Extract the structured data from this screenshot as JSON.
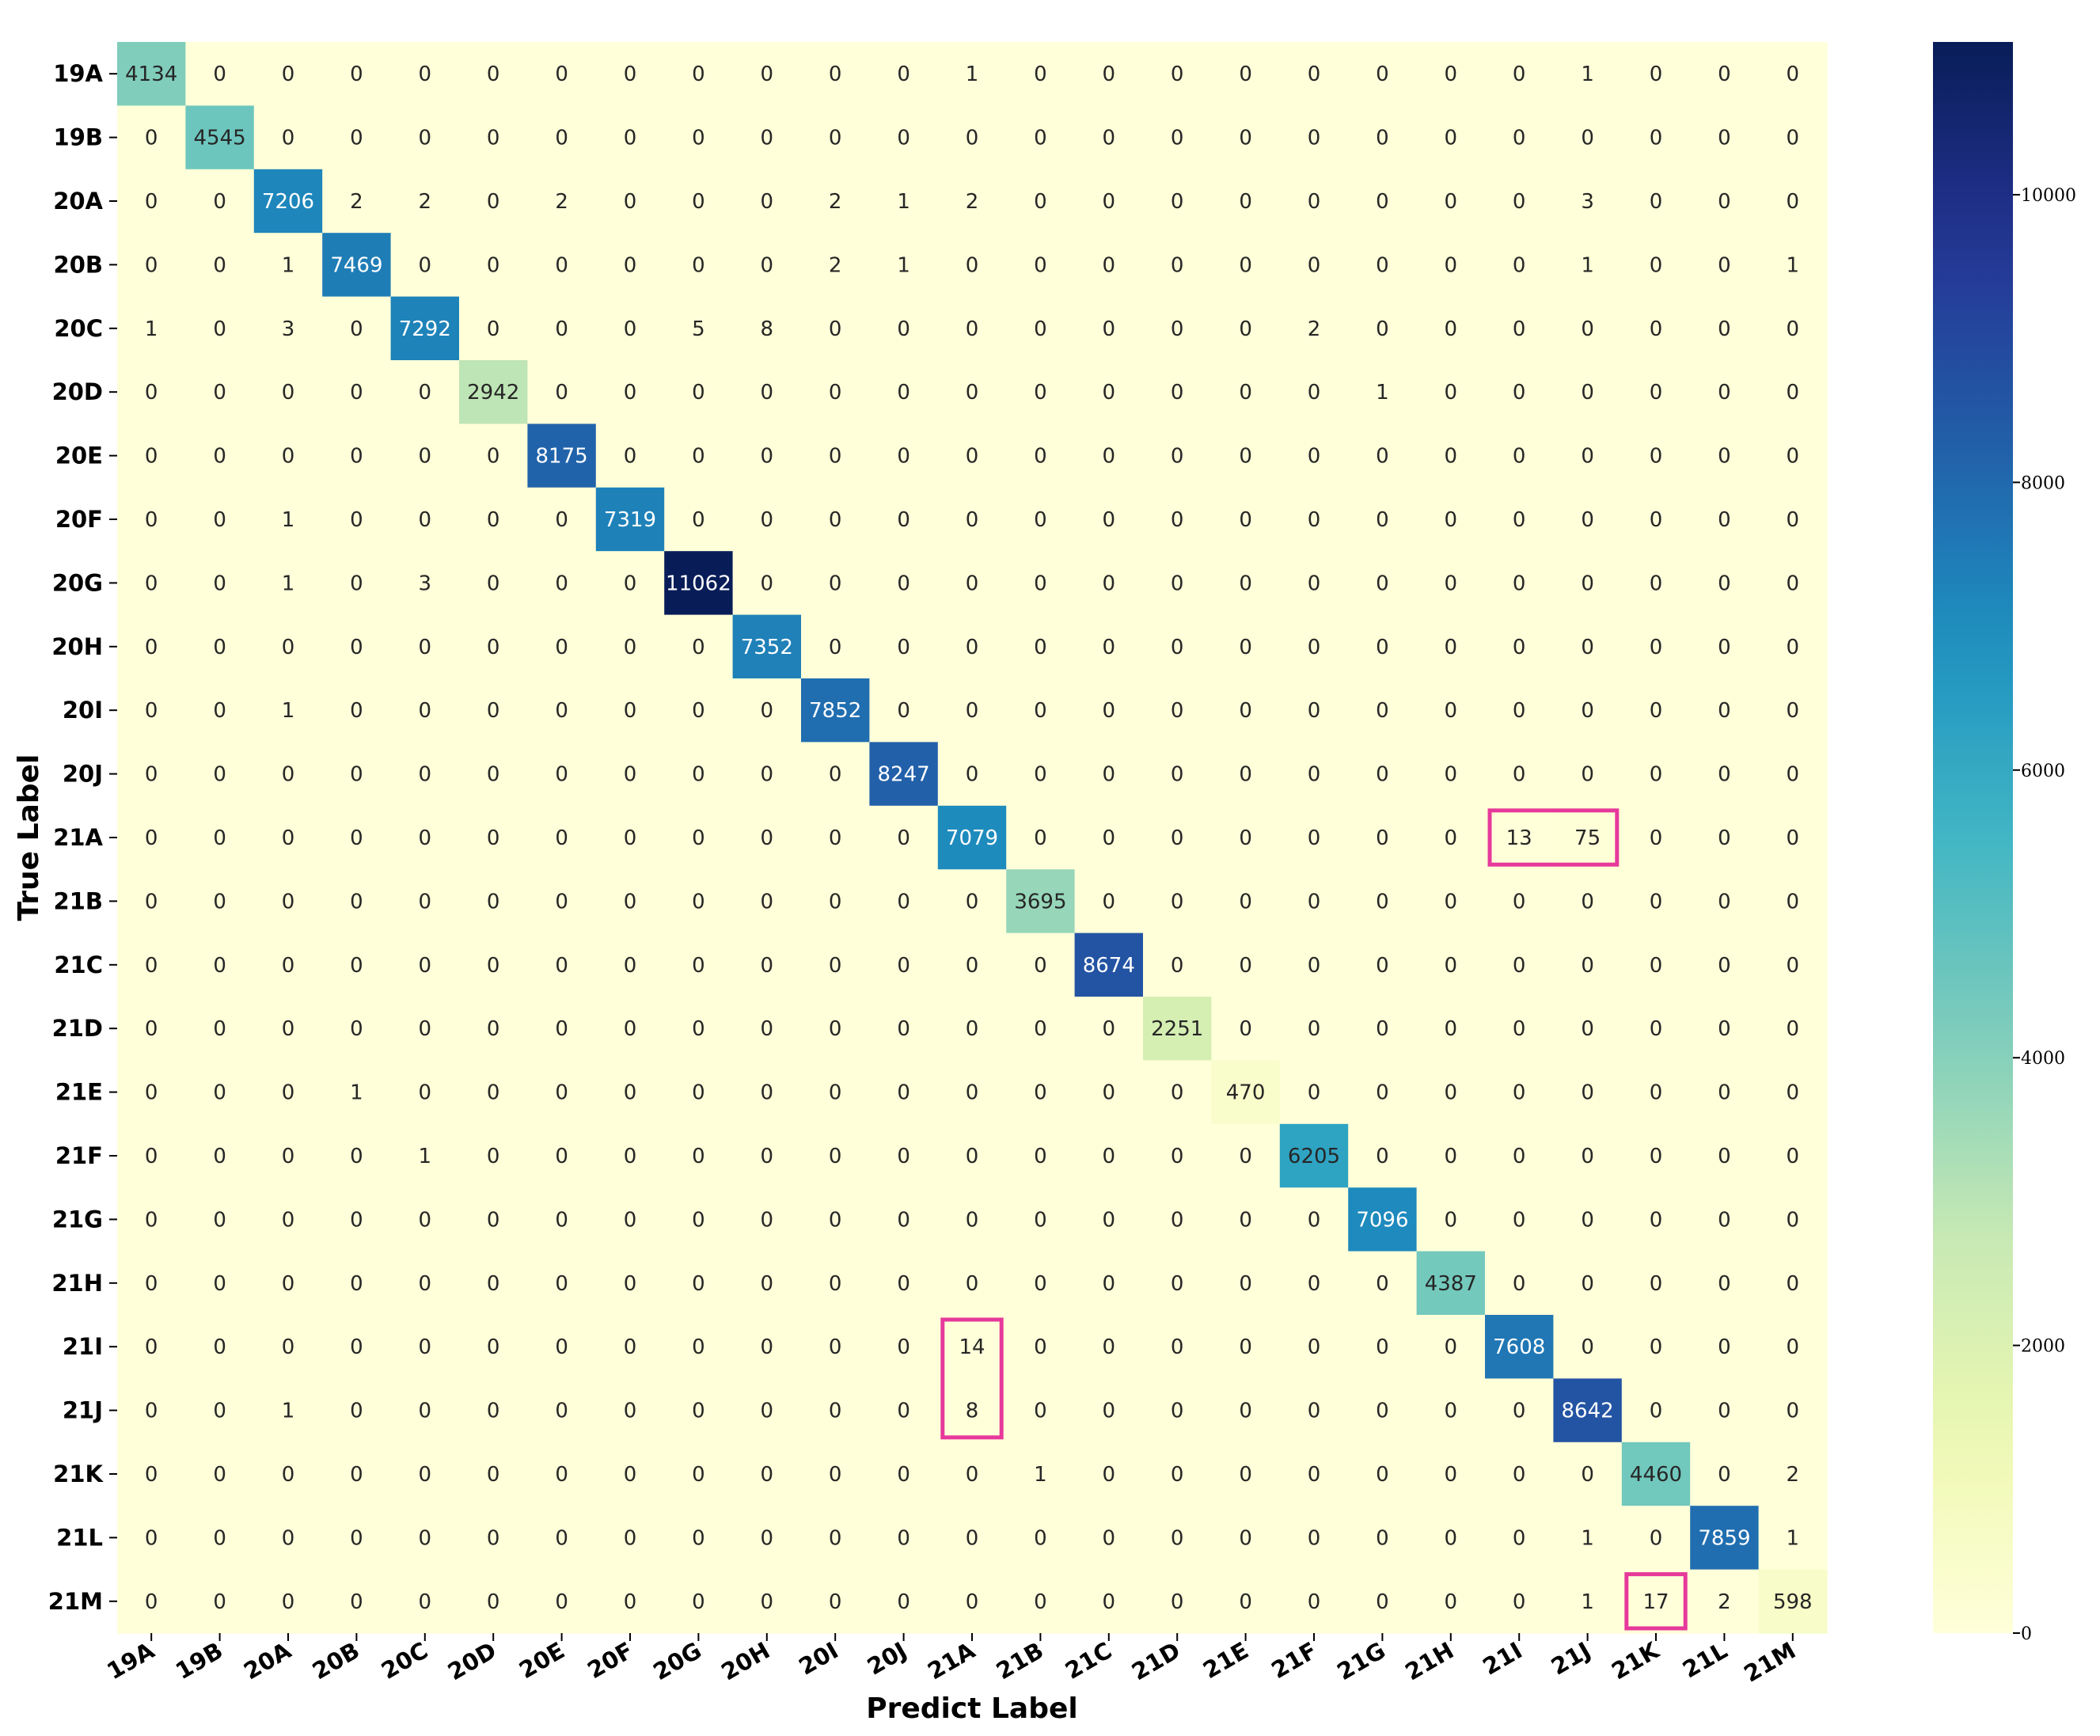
{
  "chart_data": {
    "type": "heatmap",
    "xlabel": "Predict Label",
    "ylabel": "True Label",
    "colormap": "YlGnBu",
    "vmin": 0,
    "vmax": 11062,
    "colorbar_ticks": [
      0,
      2000,
      4000,
      6000,
      8000,
      10000
    ],
    "highlight_color": "#e6399b",
    "x_categories": [
      "19A",
      "19B",
      "20A",
      "20B",
      "20C",
      "20D",
      "20E",
      "20F",
      "20G",
      "20H",
      "20I",
      "20J",
      "21A",
      "21B",
      "21C",
      "21D",
      "21E",
      "21F",
      "21G",
      "21H",
      "21I",
      "21J",
      "21K",
      "21L",
      "21M"
    ],
    "y_categories": [
      "19A",
      "19B",
      "20A",
      "20B",
      "20C",
      "20D",
      "20E",
      "20F",
      "20G",
      "20H",
      "20I",
      "20J",
      "21A",
      "21B",
      "21C",
      "21D",
      "21E",
      "21F",
      "21G",
      "21H",
      "21I",
      "21J",
      "21K",
      "21L",
      "21M"
    ],
    "values": [
      [
        4134,
        0,
        0,
        0,
        0,
        0,
        0,
        0,
        0,
        0,
        0,
        0,
        1,
        0,
        0,
        0,
        0,
        0,
        0,
        0,
        0,
        1,
        0,
        0,
        0
      ],
      [
        0,
        4545,
        0,
        0,
        0,
        0,
        0,
        0,
        0,
        0,
        0,
        0,
        0,
        0,
        0,
        0,
        0,
        0,
        0,
        0,
        0,
        0,
        0,
        0,
        0
      ],
      [
        0,
        0,
        7206,
        2,
        2,
        0,
        2,
        0,
        0,
        0,
        2,
        1,
        2,
        0,
        0,
        0,
        0,
        0,
        0,
        0,
        0,
        3,
        0,
        0,
        0
      ],
      [
        0,
        0,
        1,
        7469,
        0,
        0,
        0,
        0,
        0,
        0,
        2,
        1,
        0,
        0,
        0,
        0,
        0,
        0,
        0,
        0,
        0,
        1,
        0,
        0,
        1
      ],
      [
        1,
        0,
        3,
        0,
        7292,
        0,
        0,
        0,
        5,
        8,
        0,
        0,
        0,
        0,
        0,
        0,
        0,
        2,
        0,
        0,
        0,
        0,
        0,
        0,
        0
      ],
      [
        0,
        0,
        0,
        0,
        0,
        2942,
        0,
        0,
        0,
        0,
        0,
        0,
        0,
        0,
        0,
        0,
        0,
        0,
        1,
        0,
        0,
        0,
        0,
        0,
        0
      ],
      [
        0,
        0,
        0,
        0,
        0,
        0,
        8175,
        0,
        0,
        0,
        0,
        0,
        0,
        0,
        0,
        0,
        0,
        0,
        0,
        0,
        0,
        0,
        0,
        0,
        0
      ],
      [
        0,
        0,
        1,
        0,
        0,
        0,
        0,
        7319,
        0,
        0,
        0,
        0,
        0,
        0,
        0,
        0,
        0,
        0,
        0,
        0,
        0,
        0,
        0,
        0,
        0
      ],
      [
        0,
        0,
        1,
        0,
        3,
        0,
        0,
        0,
        11062,
        0,
        0,
        0,
        0,
        0,
        0,
        0,
        0,
        0,
        0,
        0,
        0,
        0,
        0,
        0,
        0
      ],
      [
        0,
        0,
        0,
        0,
        0,
        0,
        0,
        0,
        0,
        7352,
        0,
        0,
        0,
        0,
        0,
        0,
        0,
        0,
        0,
        0,
        0,
        0,
        0,
        0,
        0
      ],
      [
        0,
        0,
        1,
        0,
        0,
        0,
        0,
        0,
        0,
        0,
        7852,
        0,
        0,
        0,
        0,
        0,
        0,
        0,
        0,
        0,
        0,
        0,
        0,
        0,
        0
      ],
      [
        0,
        0,
        0,
        0,
        0,
        0,
        0,
        0,
        0,
        0,
        0,
        8247,
        0,
        0,
        0,
        0,
        0,
        0,
        0,
        0,
        0,
        0,
        0,
        0,
        0
      ],
      [
        0,
        0,
        0,
        0,
        0,
        0,
        0,
        0,
        0,
        0,
        0,
        0,
        7079,
        0,
        0,
        0,
        0,
        0,
        0,
        0,
        13,
        75,
        0,
        0,
        0
      ],
      [
        0,
        0,
        0,
        0,
        0,
        0,
        0,
        0,
        0,
        0,
        0,
        0,
        0,
        3695,
        0,
        0,
        0,
        0,
        0,
        0,
        0,
        0,
        0,
        0,
        0
      ],
      [
        0,
        0,
        0,
        0,
        0,
        0,
        0,
        0,
        0,
        0,
        0,
        0,
        0,
        0,
        8674,
        0,
        0,
        0,
        0,
        0,
        0,
        0,
        0,
        0,
        0
      ],
      [
        0,
        0,
        0,
        0,
        0,
        0,
        0,
        0,
        0,
        0,
        0,
        0,
        0,
        0,
        0,
        2251,
        0,
        0,
        0,
        0,
        0,
        0,
        0,
        0,
        0
      ],
      [
        0,
        0,
        0,
        1,
        0,
        0,
        0,
        0,
        0,
        0,
        0,
        0,
        0,
        0,
        0,
        0,
        470,
        0,
        0,
        0,
        0,
        0,
        0,
        0,
        0
      ],
      [
        0,
        0,
        0,
        0,
        1,
        0,
        0,
        0,
        0,
        0,
        0,
        0,
        0,
        0,
        0,
        0,
        0,
        6205,
        0,
        0,
        0,
        0,
        0,
        0,
        0
      ],
      [
        0,
        0,
        0,
        0,
        0,
        0,
        0,
        0,
        0,
        0,
        0,
        0,
        0,
        0,
        0,
        0,
        0,
        0,
        7096,
        0,
        0,
        0,
        0,
        0,
        0
      ],
      [
        0,
        0,
        0,
        0,
        0,
        0,
        0,
        0,
        0,
        0,
        0,
        0,
        0,
        0,
        0,
        0,
        0,
        0,
        0,
        4387,
        0,
        0,
        0,
        0,
        0
      ],
      [
        0,
        0,
        0,
        0,
        0,
        0,
        0,
        0,
        0,
        0,
        0,
        0,
        14,
        0,
        0,
        0,
        0,
        0,
        0,
        0,
        7608,
        0,
        0,
        0,
        0
      ],
      [
        0,
        0,
        1,
        0,
        0,
        0,
        0,
        0,
        0,
        0,
        0,
        0,
        8,
        0,
        0,
        0,
        0,
        0,
        0,
        0,
        0,
        8642,
        0,
        0,
        0
      ],
      [
        0,
        0,
        0,
        0,
        0,
        0,
        0,
        0,
        0,
        0,
        0,
        0,
        0,
        1,
        0,
        0,
        0,
        0,
        0,
        0,
        0,
        0,
        4460,
        0,
        2
      ],
      [
        0,
        0,
        0,
        0,
        0,
        0,
        0,
        0,
        0,
        0,
        0,
        0,
        0,
        0,
        0,
        0,
        0,
        0,
        0,
        0,
        0,
        1,
        0,
        7859,
        1
      ],
      [
        0,
        0,
        0,
        0,
        0,
        0,
        0,
        0,
        0,
        0,
        0,
        0,
        0,
        0,
        0,
        0,
        0,
        0,
        0,
        0,
        0,
        1,
        17,
        2,
        598
      ]
    ],
    "highlights": [
      {
        "row_start": 12,
        "row_end": 12,
        "col_start": 20,
        "col_end": 21
      },
      {
        "row_start": 20,
        "row_end": 21,
        "col_start": 12,
        "col_end": 12
      },
      {
        "row_start": 24,
        "row_end": 24,
        "col_start": 22,
        "col_end": 22
      }
    ]
  }
}
